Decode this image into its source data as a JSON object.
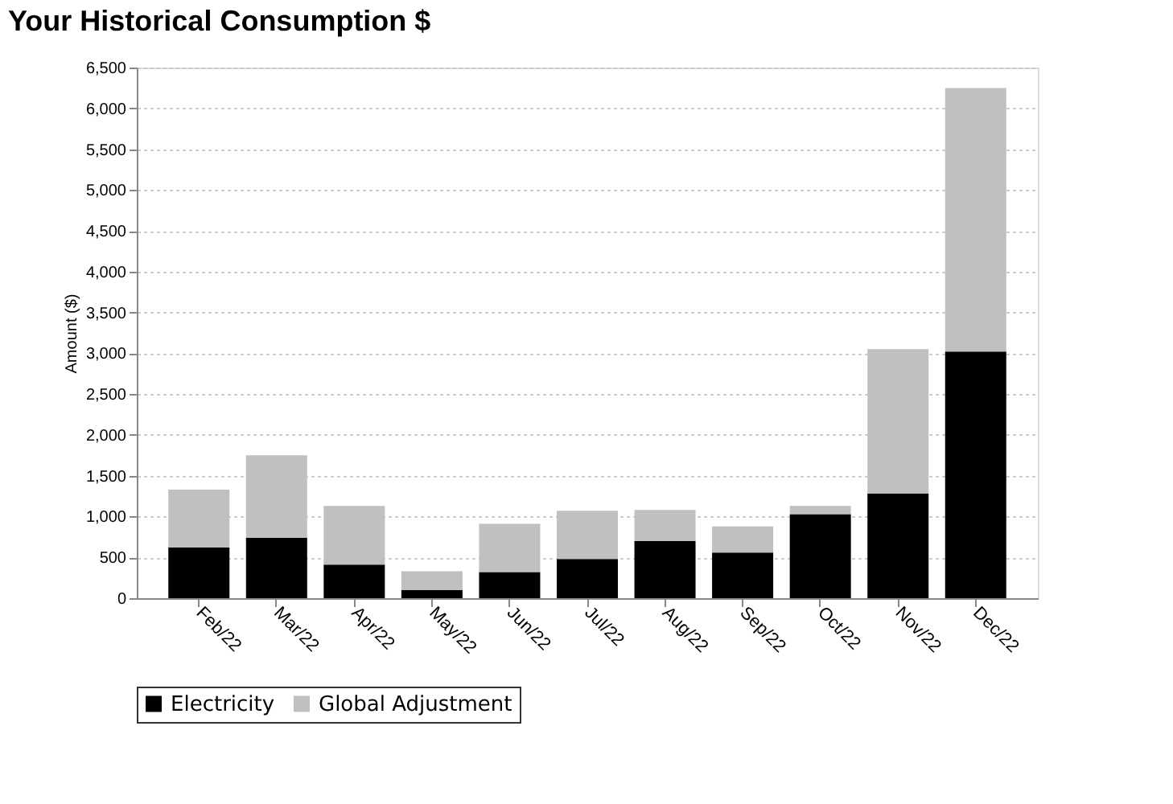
{
  "chart_data": {
    "type": "bar",
    "title": "Your Historical Consumption $",
    "ylabel": "Amount ($)",
    "categories": [
      "Feb/22",
      "Mar/22",
      "Apr/22",
      "May/22",
      "Jun/22",
      "Jul/22",
      "Aug/22",
      "Sep/22",
      "Oct/22",
      "Nov/22",
      "Dec/22"
    ],
    "stacked": true,
    "series": [
      {
        "name": "Electricity",
        "color": "#000000",
        "values": [
          620,
          740,
          410,
          100,
          320,
          480,
          700,
          560,
          1030,
          1280,
          3020
        ]
      },
      {
        "name": "Global Adjustment",
        "color": "#c0c0c0",
        "values": [
          710,
          1010,
          720,
          230,
          590,
          590,
          380,
          320,
          100,
          1770,
          3230
        ]
      }
    ],
    "ylim": [
      0,
      6500
    ],
    "yticks": [
      {
        "value": 0,
        "label": "0"
      },
      {
        "value": 500,
        "label": "500"
      },
      {
        "value": 1000,
        "label": "1,000"
      },
      {
        "value": 1500,
        "label": "1,500"
      },
      {
        "value": 2000,
        "label": "2,000"
      },
      {
        "value": 2500,
        "label": "2,500"
      },
      {
        "value": 3000,
        "label": "3,000"
      },
      {
        "value": 3500,
        "label": "3,500"
      },
      {
        "value": 4000,
        "label": "4,000"
      },
      {
        "value": 4500,
        "label": "4,500"
      },
      {
        "value": 5000,
        "label": "5,000"
      },
      {
        "value": 5500,
        "label": "5,500"
      },
      {
        "value": 6000,
        "label": "6,000"
      },
      {
        "value": 6500,
        "label": "6,500"
      }
    ],
    "grid": "y",
    "legend": "bottom"
  }
}
